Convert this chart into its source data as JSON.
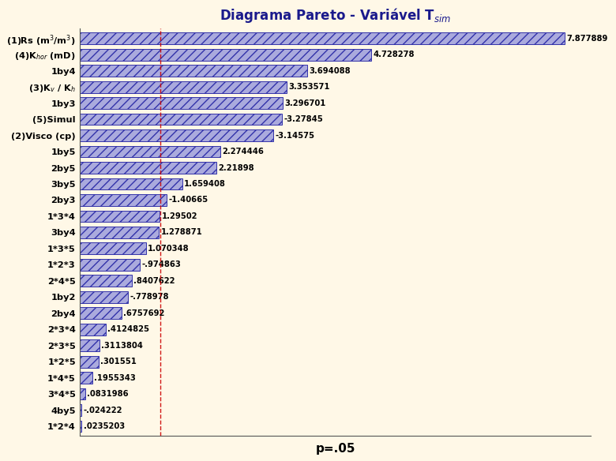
{
  "title": "Diagrama Pareto - Variável T",
  "title_sub": "sim",
  "xlabel": "p=.05",
  "background_color": "#FFF8E7",
  "bar_fill_color": "#AAAADD",
  "bar_edge_color": "#3333AA",
  "categories": [
    "(1)Rs (m$^3$/m$^3$)",
    "(4)K$_{hor}$ (mD)",
    "1by4",
    "(3)K$_v$ / K$_h$",
    "1by3",
    "(5)Simul",
    "(2)Visco (cp)",
    "1by5",
    "2by5",
    "3by5",
    "2by3",
    "1*3*4",
    "3by4",
    "1*3*5",
    "1*2*3",
    "2*4*5",
    "1by2",
    "2by4",
    "2*3*4",
    "2*3*5",
    "1*2*5",
    "1*4*5",
    "3*4*5",
    "4by5",
    "1*2*4"
  ],
  "abs_values": [
    7.877889,
    4.728278,
    3.694088,
    3.353571,
    3.296701,
    3.27845,
    3.14575,
    2.274446,
    2.21898,
    1.659408,
    1.40665,
    1.29502,
    1.278871,
    1.070348,
    0.974863,
    0.8407622,
    0.778978,
    0.6757692,
    0.4124825,
    0.3113804,
    0.301551,
    0.1955343,
    0.0831986,
    0.024222,
    0.0235203
  ],
  "value_labels": [
    "7.877889",
    "4.728278",
    "3.694088",
    "3.353571",
    "3.296701",
    "-3.27845",
    "-3.14575",
    "2.274446",
    "2.21898",
    "1.659408",
    "-1.40665",
    "1.29502",
    "1.278871",
    "1.070348",
    "-.974863",
    ".8407622",
    "-.778978",
    ".6757692",
    ".4124825",
    ".3113804",
    ".301551",
    ".1955343",
    ".0831986",
    "-.024222",
    ".0235203"
  ],
  "p05_value": 1.306,
  "xlim_max": 8.3,
  "figsize": [
    7.8,
    5.84
  ],
  "dpi": 100
}
